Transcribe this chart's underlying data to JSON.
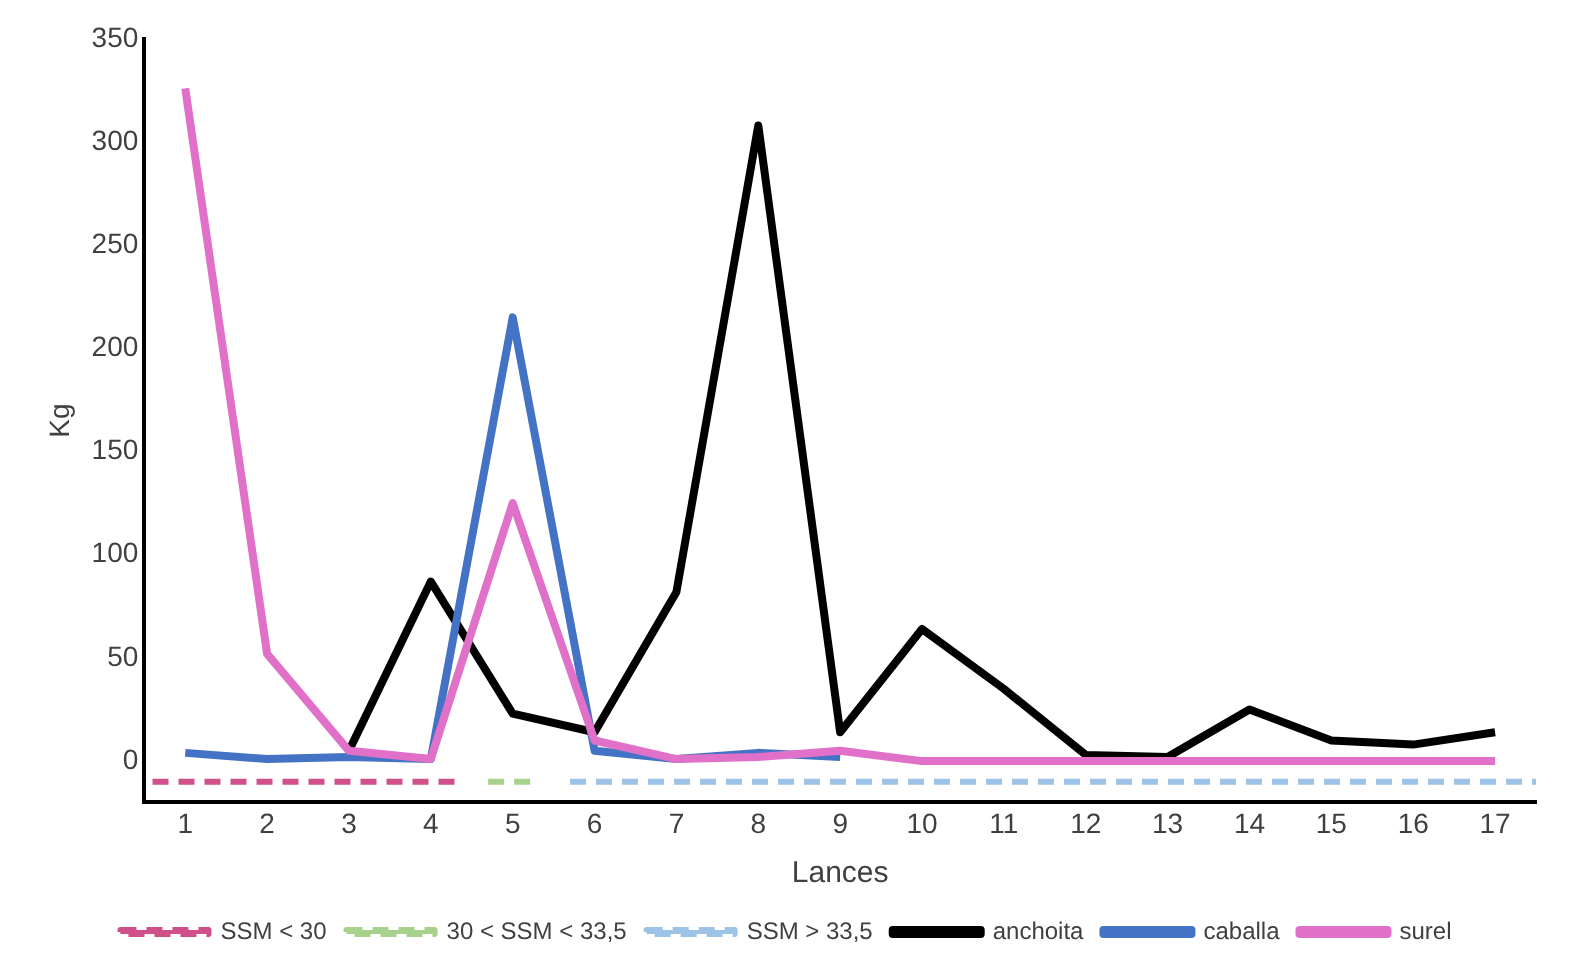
{
  "chart_data": {
    "type": "line",
    "xlabel": "Lances",
    "ylabel": "Kg",
    "xlim": [
      0.5,
      17.5
    ],
    "xticks": [
      1,
      2,
      3,
      4,
      5,
      6,
      7,
      8,
      9,
      10,
      11,
      12,
      13,
      14,
      15,
      16,
      17
    ],
    "ylim": [
      -20,
      350
    ],
    "yticks": [
      0,
      50,
      100,
      150,
      200,
      250,
      300,
      350
    ],
    "grid": false,
    "legend": "bottom",
    "marker": "none",
    "x": [
      1,
      2,
      3,
      4,
      5,
      6,
      7,
      8,
      9,
      10,
      11,
      12,
      13,
      14,
      15,
      16,
      17
    ],
    "series": [
      {
        "name": "SSM < 30",
        "color": "#d0508a",
        "line_style": "dashed",
        "x": [
          0.6,
          4.3
        ],
        "values": [
          -10,
          -10
        ]
      },
      {
        "name": "30 < SSM < 33,5",
        "color": "#a9d18e",
        "line_style": "dashed",
        "x": [
          4.7,
          5.3
        ],
        "values": [
          -10,
          -10
        ]
      },
      {
        "name": "SSM > 33,5",
        "color": "#9dc3e6",
        "line_style": "dashed",
        "x": [
          5.7,
          17.5
        ],
        "values": [
          -10,
          -10
        ]
      },
      {
        "name": "anchoita",
        "color": "#000000",
        "line_style": "solid",
        "values": [
          null,
          null,
          5,
          87,
          23,
          14,
          82,
          308,
          14,
          64,
          35,
          3,
          2,
          25,
          10,
          8,
          14
        ]
      },
      {
        "name": "caballa",
        "color": "#4472c4",
        "line_style": "solid",
        "values": [
          4,
          1,
          2,
          1,
          215,
          5,
          1,
          4,
          2,
          null,
          null,
          null,
          null,
          null,
          null,
          null,
          null
        ]
      },
      {
        "name": "surel",
        "color": "#e070c8",
        "line_style": "solid",
        "values": [
          326,
          52,
          5,
          1,
          125,
          10,
          1,
          2,
          5,
          0,
          0,
          0,
          0,
          0,
          0,
          0,
          0
        ]
      }
    ]
  }
}
